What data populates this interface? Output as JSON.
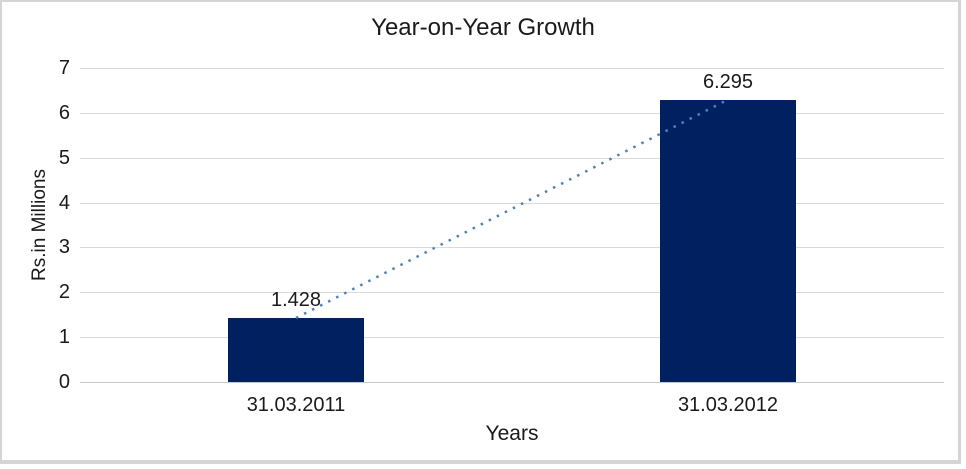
{
  "chart_data": {
    "type": "bar",
    "title": "Year-on-Year Growth",
    "categories": [
      "31.03.2011",
      "31.03.2012"
    ],
    "values": [
      1.428,
      6.295
    ],
    "data_labels": [
      "1.428",
      "6.295"
    ],
    "xlabel": "Years",
    "ylabel": "Rs.in Millions",
    "ylim": [
      0,
      7
    ],
    "yticks": [
      0,
      1,
      2,
      3,
      4,
      5,
      6,
      7
    ],
    "grid": true,
    "legend": "none",
    "trendline": {
      "style": "dotted",
      "from_value": 1.428,
      "to_value": 6.295
    },
    "colors": {
      "bar": "#002060",
      "trendline": "#4f81bd",
      "gridline": "#dadada",
      "axis_line": "#c8c8c8",
      "text": "#1a1a1a",
      "frame_border": "#d5d5d5",
      "background": "#ffffff"
    }
  }
}
